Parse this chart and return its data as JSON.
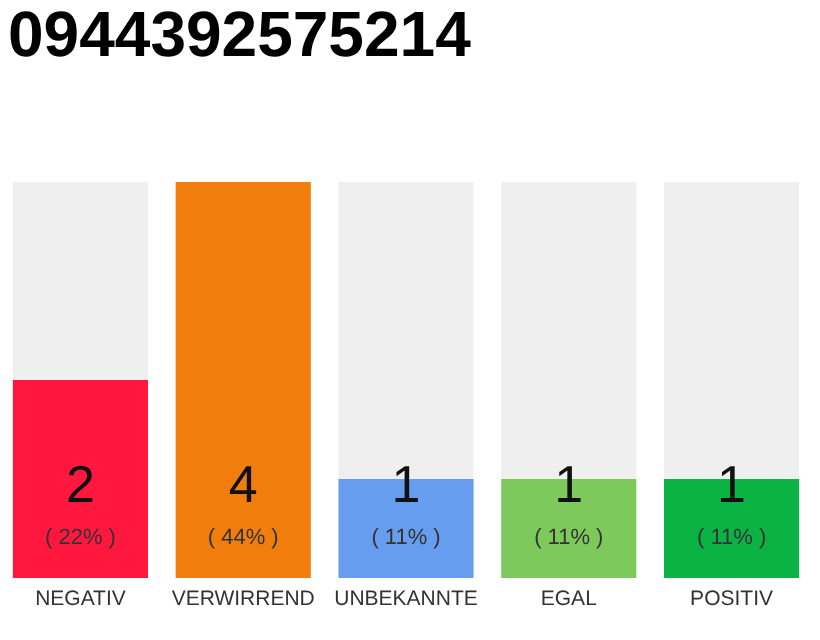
{
  "chart_data": {
    "type": "bar",
    "title": "0944392575214",
    "categories": [
      "NEGATIV",
      "VERWIRREND",
      "UNBEKANNTE",
      "EGAL",
      "POSITIV"
    ],
    "stacked": true,
    "tick_labels": "x",
    "series": [
      {
        "colors": [
          "#ff173d",
          "#f07d0c",
          "#679dee",
          "#7dc95c",
          "#0bb345"
        ],
        "values": [
          2,
          4,
          1,
          1,
          1
        ],
        "value_labels": [
          "2",
          "4",
          "1",
          "1",
          "1"
        ]
      },
      {
        "color": "#efefef",
        "values": [
          2,
          0,
          3,
          3,
          3
        ]
      }
    ],
    "annotations": [
      "( 22% )",
      "( 44% )",
      "( 11% )",
      "( 11% )",
      "( 11% )"
    ]
  }
}
